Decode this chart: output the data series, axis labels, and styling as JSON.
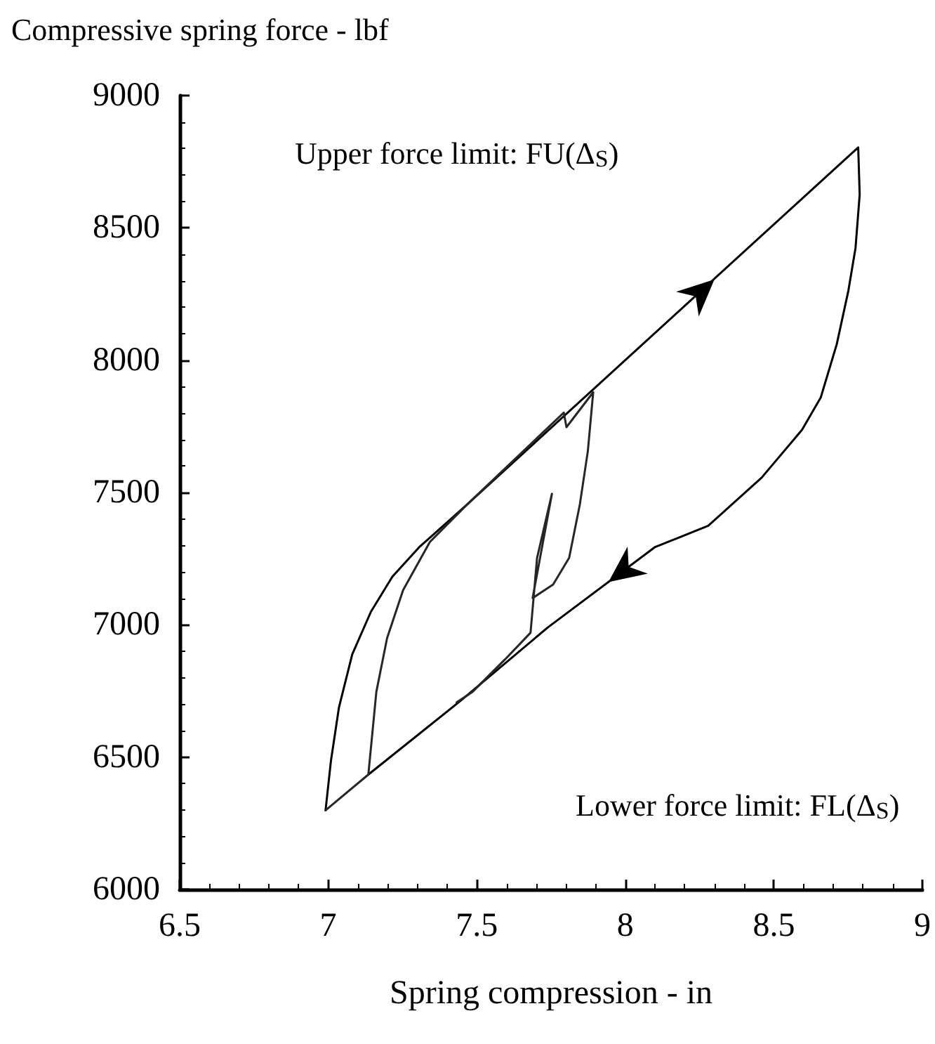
{
  "chart_data": {
    "type": "line",
    "xlabel": "Spring compression - in",
    "ylabel": "Compressive spring force - lbf",
    "xlim": [
      6.5,
      9
    ],
    "xticks": [
      6.5,
      7,
      7.5,
      8,
      8.5,
      9
    ],
    "ylim": [
      6000,
      9000
    ],
    "yticks": [
      6000,
      6500,
      7000,
      7500,
      8000,
      8500,
      9000
    ],
    "grid": false,
    "marker": "none",
    "line_style": "solid",
    "annotations": [
      "Upper force limit: FU(Δ$_{S}$)",
      "Lower force limit: FL(Δ$_{S}$)"
    ],
    "series": [
      {
        "color": "#000000",
        "x": [
          6.991,
          7.009,
          7.036,
          7.081,
          7.144,
          7.216,
          7.306,
          7.468,
          8.784,
          8.789,
          8.775,
          8.751,
          8.712,
          8.658,
          8.595,
          8.459,
          8.279,
          8.099,
          7.739,
          7.45,
          7.135
        ],
        "values": [
          6299,
          6485,
          6687,
          6889,
          7050,
          7182,
          7293,
          7455,
          8804,
          8626,
          8424,
          8263,
          8061,
          7859,
          7737,
          7556,
          7374,
          7293,
          6990,
          6717,
          6434
        ]
      },
      {
        "color": "#262626",
        "x": [
          6.991,
          7.135,
          7.162,
          7.198,
          7.252,
          7.342,
          7.468,
          7.793,
          7.802,
          7.892,
          7.874,
          7.847,
          7.811,
          7.757,
          7.688,
          7.753,
          7.703,
          7.681,
          7.595,
          7.486,
          7.432
        ],
        "values": [
          6299,
          6434,
          6747,
          6949,
          7131,
          7313,
          7455,
          7802,
          7747,
          7879,
          7657,
          7455,
          7253,
          7152,
          7101,
          7495,
          7253,
          6970,
          6869,
          6747,
          6707
        ]
      }
    ]
  }
}
